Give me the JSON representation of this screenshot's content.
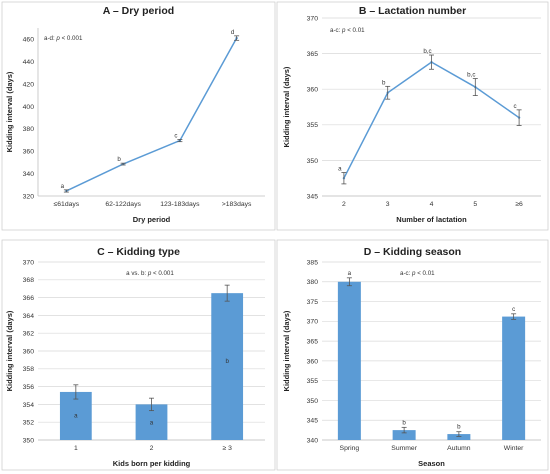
{
  "colors": {
    "series": "#5b9bd5",
    "err": "#555555"
  },
  "chart_data": [
    {
      "type": "line",
      "title": "A – Dry period",
      "xlabel": "Dry period",
      "ylabel": "Kidding interval (days)",
      "note": {
        "prefix": "a-d: ",
        "p": "p",
        "rest": " < 0.001"
      },
      "categories": [
        "≤61days",
        "62-122days",
        "123-183days",
        ">183days"
      ],
      "values": [
        324.5,
        348.5,
        369.5,
        461
      ],
      "errors": [
        1,
        0.8,
        1,
        2
      ],
      "letters": [
        "a",
        "b",
        "c",
        "d"
      ],
      "ylim": [
        320,
        470
      ],
      "yticks": [
        320,
        340,
        360,
        380,
        400,
        420,
        440,
        460
      ],
      "grid": false
    },
    {
      "type": "line",
      "title": "B – Lactation number",
      "xlabel": "Number of lactation",
      "ylabel": "Kidding interval (days)",
      "note": {
        "prefix": "a-c: ",
        "p": "p",
        "rest": " < 0.01"
      },
      "categories": [
        "2",
        "3",
        "4",
        "5",
        "≥6"
      ],
      "values": [
        347.5,
        359.5,
        363.8,
        360.3,
        356
      ],
      "errors": [
        0.8,
        0.9,
        1.0,
        1.2,
        1.1
      ],
      "letters": [
        "a",
        "b",
        "b,c",
        "b,c",
        "c"
      ],
      "ylim": [
        345,
        370
      ],
      "yticks": [
        345,
        350,
        355,
        360,
        365,
        370
      ],
      "grid": true
    },
    {
      "type": "bar",
      "title": "C – Kidding type",
      "xlabel": "Kids born per kidding",
      "ylabel": "Kidding interval (days)",
      "note": {
        "prefix": "a vs. b: ",
        "p": "p",
        "rest": " < 0.001"
      },
      "categories": [
        "1",
        "2",
        "≥ 3"
      ],
      "values": [
        355.4,
        354,
        366.5
      ],
      "errors": [
        0.8,
        0.7,
        0.9
      ],
      "letters": [
        "a",
        "a",
        "b"
      ],
      "ylim": [
        350,
        370
      ],
      "yticks": [
        350,
        352,
        354,
        356,
        358,
        360,
        362,
        364,
        366,
        368,
        370
      ],
      "grid": true
    },
    {
      "type": "bar",
      "title": "D – Kidding season",
      "xlabel": "Season",
      "ylabel": "Kidding interval (days)",
      "note": {
        "prefix": "a-c: ",
        "p": "p",
        "rest": " < 0.01"
      },
      "categories": [
        "Spring",
        "Summer",
        "Autumn",
        "Winter"
      ],
      "values": [
        380,
        342.5,
        341.5,
        371.2
      ],
      "errors": [
        1.0,
        0.7,
        0.6,
        0.7
      ],
      "letters": [
        "a",
        "b",
        "b",
        "c"
      ],
      "ylim": [
        340,
        385
      ],
      "yticks": [
        340,
        345,
        350,
        355,
        360,
        365,
        370,
        375,
        380,
        385
      ],
      "grid": true
    }
  ]
}
